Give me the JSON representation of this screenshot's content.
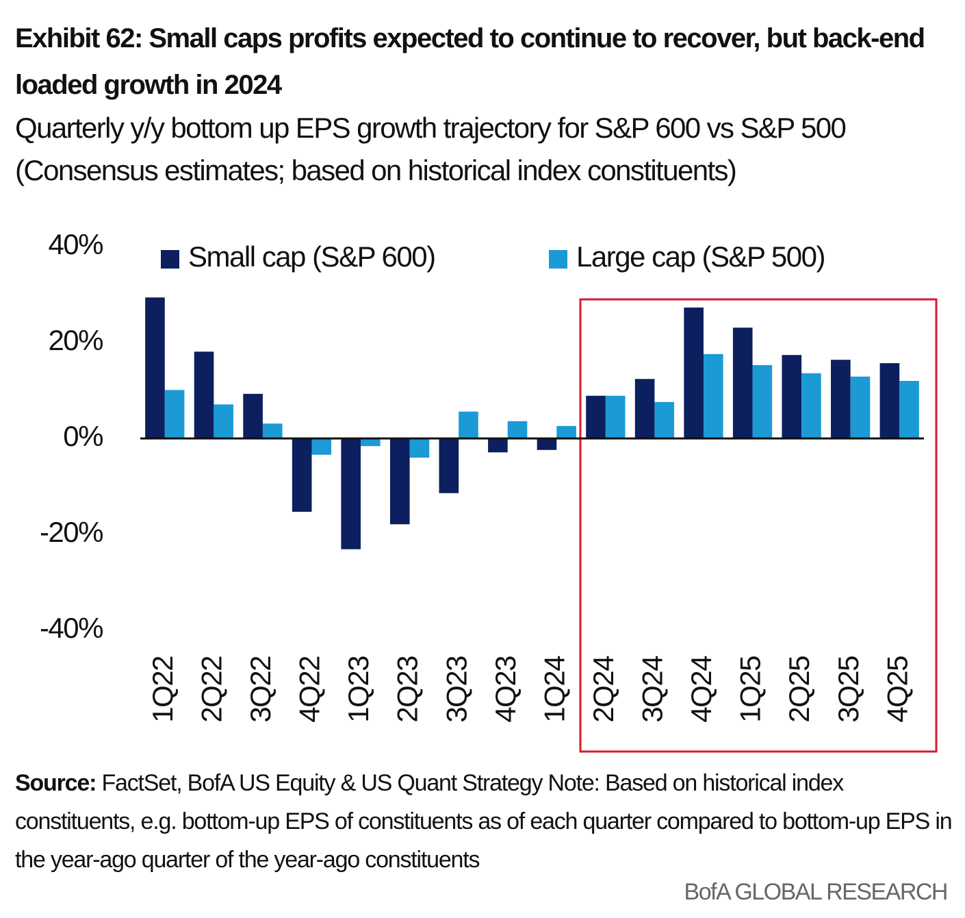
{
  "chart_data": {
    "type": "bar",
    "title": "Exhibit 62: Small caps profits expected to continue to recover, but back-end loaded growth in 2024",
    "subtitle": "Quarterly y/y bottom up EPS growth trajectory for S&P 600 vs S&P 500 (Consensus estimates; based on historical index constituents)",
    "categories": [
      "1Q22",
      "2Q22",
      "3Q22",
      "4Q22",
      "1Q23",
      "2Q23",
      "3Q23",
      "4Q23",
      "1Q24",
      "2Q24",
      "3Q24",
      "4Q24",
      "1Q25",
      "2Q25",
      "3Q25",
      "4Q25"
    ],
    "series": [
      {
        "name": "Small cap (S&P 600)",
        "color": "#0c1f5e",
        "values": [
          29.4,
          18.1,
          9.3,
          -15.3,
          -23.1,
          -17.9,
          -11.4,
          -2.9,
          -2.4,
          8.9,
          12.4,
          27.3,
          23.1,
          17.4,
          16.4,
          15.7
        ]
      },
      {
        "name": "Large cap (S&P 500)",
        "color": "#1b9ad6",
        "values": [
          10.1,
          7.1,
          3.1,
          -3.4,
          -1.6,
          -4.0,
          5.6,
          3.6,
          2.6,
          8.9,
          7.6,
          17.6,
          15.3,
          13.6,
          12.9,
          12.0
        ]
      }
    ],
    "ylim": [
      -40,
      40
    ],
    "yticks": [
      {
        "value": -40,
        "label": "-40%"
      },
      {
        "value": -20,
        "label": "-20%"
      },
      {
        "value": 0,
        "label": "0%"
      },
      {
        "value": 20,
        "label": "20%"
      },
      {
        "value": 40,
        "label": "40%"
      }
    ],
    "legend": "top",
    "source_label": "Source:",
    "source": "FactSet, BofA US Equity & US Quant Strategy Note: Based on historical index constituents, e.g. bottom-up EPS of constituents as of each quarter compared to bottom-up EPS in the year-ago quarter of the year-ago constituents",
    "branding": "BofA GLOBAL RESEARCH"
  }
}
